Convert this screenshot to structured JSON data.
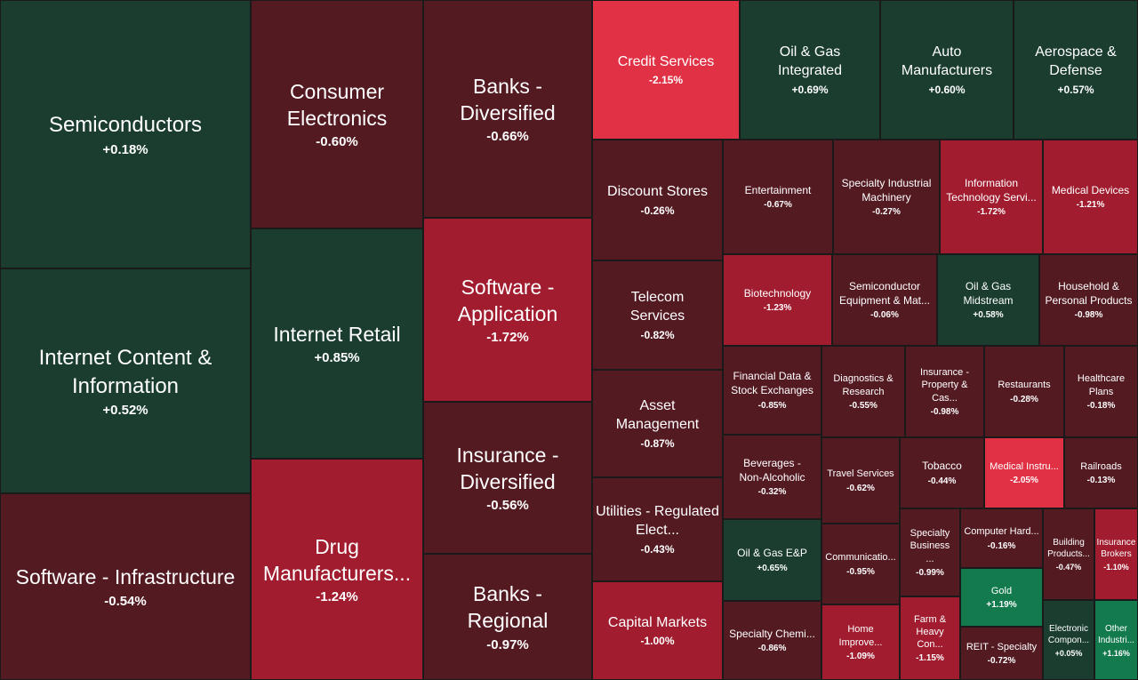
{
  "colors": {
    "strong_negative": "#e03145",
    "negative": "#a01c2e",
    "mild_negative": "#541a22",
    "mild_positive": "#1a3d30",
    "positive": "#137a4e",
    "border": "#1a1a1a",
    "text": "#ffffff"
  },
  "chart_data": {
    "type": "treemap",
    "title": "",
    "tiles": [
      {
        "name": "Semiconductors",
        "change": "+0.18%",
        "value": 0.18
      },
      {
        "name": "Internet Content & Information",
        "change": "+0.52%",
        "value": 0.52
      },
      {
        "name": "Software - Infrastructure",
        "change": "-0.54%",
        "value": -0.54
      },
      {
        "name": "Consumer Electronics",
        "change": "-0.60%",
        "value": -0.6
      },
      {
        "name": "Internet Retail",
        "change": "+0.85%",
        "value": 0.85
      },
      {
        "name": "Drug Manufacturers...",
        "change": "-1.24%",
        "value": -1.24
      },
      {
        "name": "Banks - Diversified",
        "change": "-0.66%",
        "value": -0.66
      },
      {
        "name": "Software - Application",
        "change": "-1.72%",
        "value": -1.72
      },
      {
        "name": "Insurance - Diversified",
        "change": "-0.56%",
        "value": -0.56
      },
      {
        "name": "Banks - Regional",
        "change": "-0.97%",
        "value": -0.97
      },
      {
        "name": "Credit Services",
        "change": "-2.15%",
        "value": -2.15
      },
      {
        "name": "Oil & Gas Integrated",
        "change": "+0.69%",
        "value": 0.69
      },
      {
        "name": "Auto Manufacturers",
        "change": "+0.60%",
        "value": 0.6
      },
      {
        "name": "Aerospace & Defense",
        "change": "+0.57%",
        "value": 0.57
      },
      {
        "name": "Discount Stores",
        "change": "-0.26%",
        "value": -0.26
      },
      {
        "name": "Telecom Services",
        "change": "-0.82%",
        "value": -0.82
      },
      {
        "name": "Asset Management",
        "change": "-0.87%",
        "value": -0.87
      },
      {
        "name": "Utilities - Regulated Elect...",
        "change": "-0.43%",
        "value": -0.43
      },
      {
        "name": "Capital Markets",
        "change": "-1.00%",
        "value": -1.0
      },
      {
        "name": "Entertainment",
        "change": "-0.67%",
        "value": -0.67
      },
      {
        "name": "Specialty Industrial Machinery",
        "change": "-0.27%",
        "value": -0.27
      },
      {
        "name": "Information Technology Servi...",
        "change": "-1.72%",
        "value": -1.72
      },
      {
        "name": "Medical Devices",
        "change": "-1.21%",
        "value": -1.21
      },
      {
        "name": "Biotechnology",
        "change": "-1.23%",
        "value": -1.23
      },
      {
        "name": "Semiconductor Equipment & Mat...",
        "change": "-0.06%",
        "value": -0.06
      },
      {
        "name": "Oil & Gas Midstream",
        "change": "+0.58%",
        "value": 0.58
      },
      {
        "name": "Household & Personal Products",
        "change": "-0.98%",
        "value": -0.98
      },
      {
        "name": "Financial Data & Stock Exchanges",
        "change": "-0.85%",
        "value": -0.85
      },
      {
        "name": "Diagnostics & Research",
        "change": "-0.55%",
        "value": -0.55
      },
      {
        "name": "Insurance - Property & Cas...",
        "change": "-0.98%",
        "value": -0.98
      },
      {
        "name": "Restaurants",
        "change": "-0.28%",
        "value": -0.28
      },
      {
        "name": "Healthcare Plans",
        "change": "-0.18%",
        "value": -0.18
      },
      {
        "name": "Beverages - Non-Alcoholic",
        "change": "-0.32%",
        "value": -0.32
      },
      {
        "name": "Travel Services",
        "change": "-0.62%",
        "value": -0.62
      },
      {
        "name": "Tobacco",
        "change": "-0.44%",
        "value": -0.44
      },
      {
        "name": "Medical Instru...",
        "change": "-2.05%",
        "value": -2.05
      },
      {
        "name": "Railroads",
        "change": "-0.13%",
        "value": -0.13
      },
      {
        "name": "Oil & Gas E&P",
        "change": "+0.65%",
        "value": 0.65
      },
      {
        "name": "Communicatio...",
        "change": "-0.95%",
        "value": -0.95
      },
      {
        "name": "Specialty Business ...",
        "change": "-0.99%",
        "value": -0.99
      },
      {
        "name": "Computer Hard...",
        "change": "-0.16%",
        "value": -0.16
      },
      {
        "name": "Building Products...",
        "change": "-0.47%",
        "value": -0.47
      },
      {
        "name": "Insurance Brokers",
        "change": "-1.10%",
        "value": -1.1
      },
      {
        "name": "Gold",
        "change": "+1.19%",
        "value": 1.19
      },
      {
        "name": "Specialty Chemi...",
        "change": "-0.86%",
        "value": -0.86
      },
      {
        "name": "Home Improve...",
        "change": "-1.09%",
        "value": -1.09
      },
      {
        "name": "Farm & Heavy Con...",
        "change": "-1.15%",
        "value": -1.15
      },
      {
        "name": "REIT - Specialty",
        "change": "-0.72%",
        "value": -0.72
      },
      {
        "name": "Electronic Compon...",
        "change": "+0.05%",
        "value": 0.05
      },
      {
        "name": "Other Industri...",
        "change": "+1.16%",
        "value": 1.16
      }
    ]
  }
}
